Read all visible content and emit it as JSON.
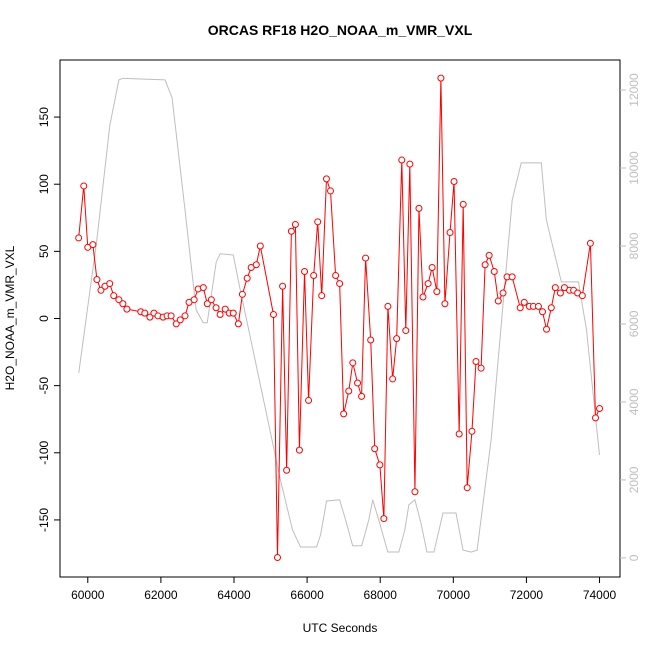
{
  "chart_data": {
    "type": "line",
    "title": "ORCAS RF18 H2O_NOAA_m_VMR_VXL",
    "xlabel": "UTC Seconds",
    "ylabel": "H2O_NOAA_m_VMR_VXL",
    "xlim": [
      59240,
      74560
    ],
    "ylim": [
      -192.5,
      192.5
    ],
    "y2lim": [
      -490,
      12770
    ],
    "xticks": [
      60000,
      62000,
      64000,
      66000,
      68000,
      70000,
      72000,
      74000
    ],
    "yticks": [
      -150,
      -100,
      -50,
      0,
      50,
      100,
      150
    ],
    "y2ticks": [
      0,
      2000,
      4000,
      6000,
      8000,
      10000,
      12000
    ],
    "series": [
      {
        "color": "#ff0000",
        "markers": true,
        "x": [
          59750,
          59890,
          60000,
          60140,
          60250,
          60360,
          60470,
          60600,
          60710,
          60850,
          60960,
          61070,
          61450,
          61560,
          61700,
          61810,
          61920,
          62060,
          62170,
          62280,
          62420,
          62530,
          62660,
          62770,
          62910,
          63020,
          63160,
          63270,
          63380,
          63510,
          63620,
          63760,
          63870,
          63980,
          64120,
          64230,
          64360,
          64470,
          64610,
          64720,
          65080,
          65190,
          65330,
          65440,
          65570,
          65680,
          65790,
          65930,
          66040,
          66180,
          66290,
          66400,
          66530,
          66640,
          66780,
          66890,
          67000,
          67140,
          67250,
          67380,
          67490,
          67600,
          67740,
          67850,
          67990,
          68100,
          68210,
          68340,
          68450,
          68590,
          68700,
          68810,
          68950,
          69060,
          69170,
          69310,
          69420,
          69550,
          69660,
          69770,
          69910,
          70020,
          70160,
          70270,
          70380,
          70510,
          70620,
          70760,
          70870,
          70980,
          71120,
          71230,
          71360,
          71470,
          71610,
          71830,
          71940,
          72080,
          72190,
          72330,
          72440,
          72550,
          72680,
          72790,
          72930,
          73040,
          73180,
          73290,
          73400,
          73530,
          73750,
          73890,
          74000
        ],
        "values": [
          60,
          98.7,
          53,
          55,
          29,
          21,
          24,
          26,
          17,
          14,
          11,
          7,
          5,
          4,
          1,
          4,
          2,
          1,
          2,
          2,
          -4,
          -1,
          2,
          12,
          14,
          22,
          23,
          11,
          14,
          8,
          3,
          7,
          4,
          4,
          -4,
          18,
          30,
          38,
          40,
          54,
          3,
          -178,
          24,
          -113,
          65,
          70,
          -98,
          35,
          -61,
          32,
          72,
          17,
          104,
          95,
          32,
          26,
          -71,
          -54,
          -33,
          -48,
          -58,
          45,
          -16,
          -97,
          -109,
          -149,
          9,
          -45,
          -15,
          118,
          -9,
          115,
          -129,
          82,
          16,
          26,
          38,
          20,
          179,
          11,
          64,
          102,
          -86,
          85,
          -126,
          -84,
          -32,
          -37,
          40,
          47,
          35,
          13,
          19,
          31,
          31,
          8,
          12,
          9,
          9,
          9,
          5,
          -8,
          8,
          23,
          19,
          23,
          21,
          21,
          19,
          17,
          56,
          -74,
          -67
        ]
      },
      {
        "color": "#bebebe",
        "axis": "y2",
        "markers": false,
        "x": [
          59753,
          60247,
          60604,
          60851,
          60961,
          62114,
          62306,
          62663,
          62965,
          63157,
          63267,
          63514,
          63623,
          63980,
          64172,
          64721,
          65270,
          65600,
          65819,
          66259,
          66368,
          66533,
          66890,
          67055,
          67247,
          67494,
          67686,
          67796,
          67961,
          68208,
          68510,
          68674,
          68784,
          68949,
          69113,
          69278,
          69470,
          69717,
          70074,
          70266,
          70486,
          70651,
          71035,
          71611,
          71858,
          72407,
          72545,
          72956,
          73423,
          73643,
          73999
        ],
        "values": [
          4740,
          8150,
          11100,
          12260,
          12300,
          12260,
          11800,
          8900,
          6360,
          6030,
          6030,
          7590,
          7800,
          7770,
          6870,
          4440,
          2000,
          720,
          280,
          280,
          590,
          1460,
          1490,
          970,
          310,
          310,
          970,
          1490,
          970,
          150,
          150,
          720,
          1360,
          1490,
          900,
          150,
          150,
          1150,
          1150,
          200,
          150,
          200,
          3030,
          9180,
          10130,
          10130,
          8670,
          7080,
          7080,
          5850,
          2640
        ]
      }
    ]
  }
}
